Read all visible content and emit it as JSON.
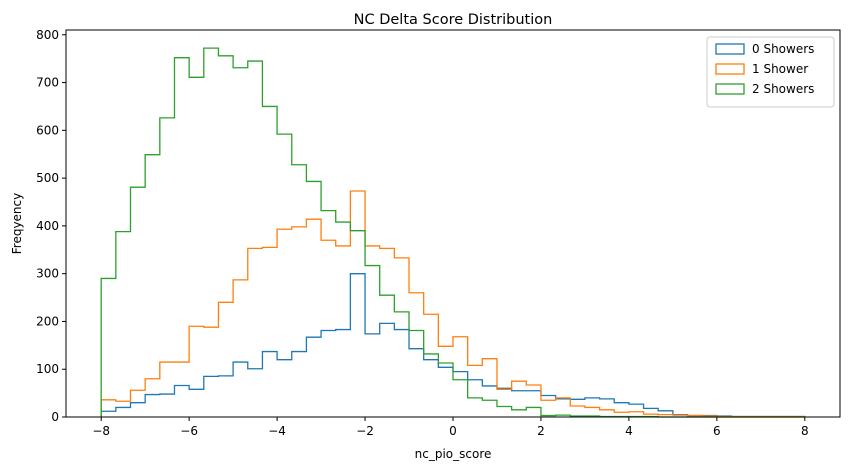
{
  "chart_data": {
    "type": "histogram",
    "title": "NC Delta Score Distribution",
    "xlabel": "nc_pio_score",
    "ylabel": "Freqyency",
    "xlim": [
      -8.8,
      8.8
    ],
    "ylim": [
      0,
      810
    ],
    "xticks": [
      -8,
      -6,
      -4,
      -2,
      0,
      2,
      4,
      6,
      8
    ],
    "yticks": [
      0,
      100,
      200,
      300,
      400,
      500,
      600,
      700,
      800
    ],
    "bin_start": -8,
    "bin_width": 0.3333,
    "grid": false,
    "legend_position": "top-right",
    "series": [
      {
        "name": "0 Showers",
        "color": "#1f77b4",
        "values": [
          12,
          20,
          30,
          47,
          48,
          66,
          58,
          85,
          86,
          115,
          101,
          137,
          120,
          137,
          167,
          181,
          183,
          300,
          174,
          196,
          183,
          143,
          120,
          104,
          95,
          78,
          65,
          60,
          55,
          55,
          45,
          38,
          37,
          40,
          38,
          30,
          27,
          18,
          13,
          5,
          3,
          3,
          2,
          1,
          1,
          1,
          1,
          1
        ]
      },
      {
        "name": "1 Shower",
        "color": "#ff7f0e",
        "values": [
          36,
          33,
          56,
          80,
          115,
          115,
          190,
          188,
          240,
          287,
          353,
          355,
          393,
          398,
          414,
          370,
          358,
          473,
          358,
          353,
          333,
          260,
          215,
          148,
          168,
          108,
          122,
          58,
          75,
          67,
          35,
          40,
          23,
          20,
          15,
          10,
          11,
          6,
          5,
          4,
          3,
          2,
          1,
          1,
          1,
          1,
          1,
          1
        ]
      },
      {
        "name": "2 Showers",
        "color": "#2ca02c",
        "values": [
          290,
          388,
          481,
          549,
          626,
          752,
          711,
          772,
          756,
          731,
          745,
          650,
          592,
          528,
          493,
          432,
          408,
          390,
          317,
          255,
          220,
          181,
          132,
          113,
          78,
          40,
          35,
          22,
          15,
          20,
          3,
          4,
          2,
          2,
          1,
          1,
          1,
          1,
          0,
          0,
          0,
          0,
          0,
          0,
          0,
          0,
          0,
          0
        ]
      }
    ]
  }
}
